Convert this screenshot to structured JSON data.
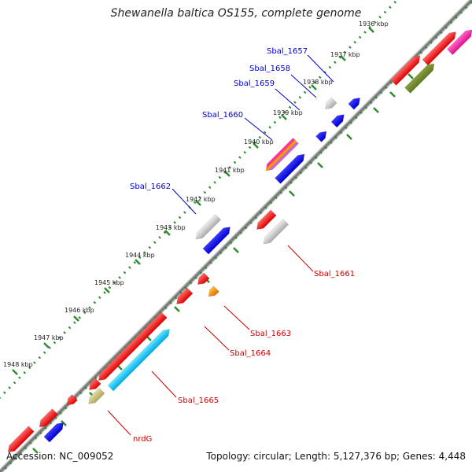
{
  "title": "Shewanella baltica OS155, complete genome",
  "footer": {
    "accession": "Accession: NC_009052",
    "summary": "Topology: circular; Length: 5,127,376 bp; Genes: 4,448"
  },
  "colors": {
    "backbone": "#808080",
    "dots": "#2e8b2e",
    "top_label": "#0000cc",
    "bottom_label": "#cc0000"
  },
  "ticks": [
    "1936 kbp",
    "1937 kbp",
    "1938 kbp",
    "1939 kbp",
    "1940 kbp",
    "1941 kbp",
    "1942 kbp",
    "1943 kbp",
    "1944 kbp",
    "1945 kbp",
    "1946 kbp",
    "1947 kbp",
    "1948 kbp"
  ],
  "labels": {
    "top": [
      "Sbal_1657",
      "Sbal_1658",
      "Sbal_1659",
      "Sbal_1660",
      "Sbal_1662"
    ],
    "bottom": [
      "Sbal_1661",
      "Sbal_1663",
      "Sbal_1664",
      "Sbal_1665",
      "nrdG"
    ]
  }
}
